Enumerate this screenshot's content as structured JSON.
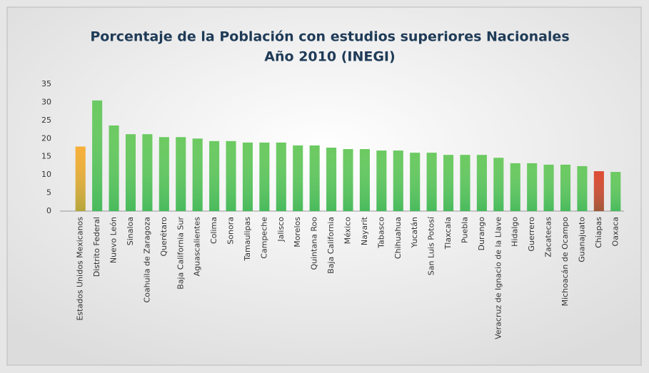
{
  "chart_data": {
    "type": "bar",
    "title": "Porcentaje de la Población con estudios superiores Nacionales",
    "subtitle": "Año 2010 (INEGI)",
    "categories": [
      "Estados Unidos Mexicanos",
      "Distrito Federal",
      "Nuevo León",
      "Sinaloa",
      "Coahuila de Zaragoza",
      "Querétaro",
      "Baja California Sur",
      "Aguascalientes",
      "Colima",
      "Sonora",
      "Tamaulipas",
      "Campeche",
      "Jalisco",
      "Morelos",
      "Quintana Roo",
      "Baja California",
      "México",
      "Nayarit",
      "Tabasco",
      "Chihuahua",
      "Yucatán",
      "San Luis Potosí",
      "Tlaxcala",
      "Puebla",
      "Durango",
      "Veracruz de Ignacio de la Llave",
      "Hidalgo",
      "Guerrero",
      "Zacatecas",
      "Michoacán de Ocampo",
      "Guanajuato",
      "Chiapas",
      "Oaxaca"
    ],
    "values": [
      17.8,
      30.5,
      23.6,
      21.2,
      21.2,
      20.4,
      20.4,
      20.0,
      19.3,
      19.3,
      18.9,
      18.9,
      18.9,
      18.1,
      18.1,
      17.5,
      17.1,
      17.1,
      16.7,
      16.7,
      16.1,
      16.1,
      15.5,
      15.5,
      15.5,
      14.7,
      13.2,
      13.2,
      12.8,
      12.8,
      12.4,
      11.0,
      10.8
    ],
    "colors": [
      "#f5a623",
      "#5cc450",
      "#5cc450",
      "#5cc450",
      "#5cc450",
      "#5cc450",
      "#5cc450",
      "#5cc450",
      "#5cc450",
      "#5cc450",
      "#5cc450",
      "#5cc450",
      "#5cc450",
      "#5cc450",
      "#5cc450",
      "#5cc450",
      "#5cc450",
      "#5cc450",
      "#5cc450",
      "#5cc450",
      "#5cc450",
      "#5cc450",
      "#5cc450",
      "#5cc450",
      "#5cc450",
      "#5cc450",
      "#5cc450",
      "#5cc450",
      "#5cc450",
      "#5cc450",
      "#5cc450",
      "#d9381e",
      "#5cc450"
    ],
    "ylim": [
      0,
      35
    ],
    "yticks": [
      0,
      5,
      10,
      15,
      20,
      25,
      30,
      35
    ],
    "grid": false
  }
}
